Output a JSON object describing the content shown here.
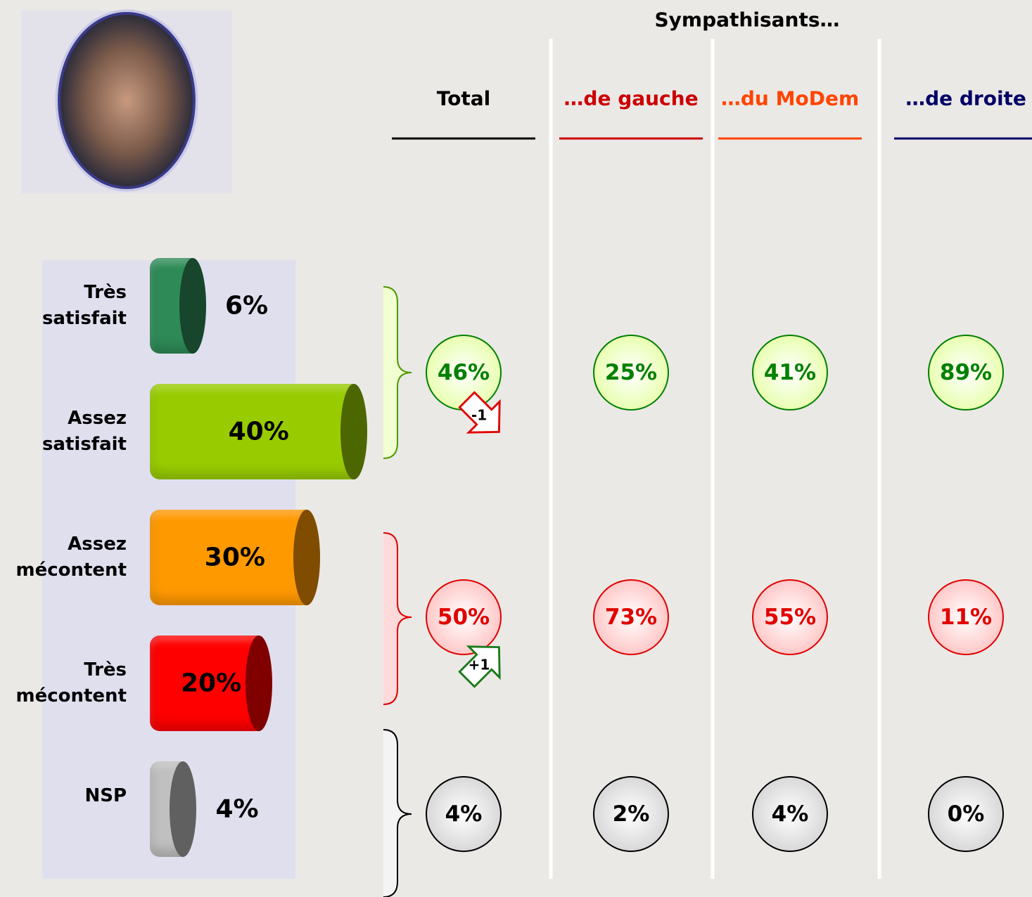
{
  "chart_data": {
    "type": "bar",
    "categories": [
      "Très satisfait",
      "Assez satisfait",
      "Assez mécontent",
      "Très mécontent",
      "NSP"
    ],
    "values": [
      6,
      40,
      30,
      20,
      4
    ],
    "value_labels": [
      "6%",
      "40%",
      "30%",
      "20%",
      "4%"
    ],
    "colors": [
      "#2e8b57",
      "#99cc00",
      "#ff9900",
      "#ff0000",
      "#c0c0c0"
    ],
    "breakdown": {
      "title": "Sympathisants…",
      "columns": [
        "Total",
        "…de gauche",
        "…du MoDem",
        "…de droite"
      ],
      "column_colors": [
        "#000000",
        "#cc0000",
        "#ff4400",
        "#000066"
      ],
      "rows": [
        {
          "color": "#008000",
          "values": [
            46,
            25,
            41,
            89
          ],
          "value_labels": [
            "46%",
            "25%",
            "41%",
            "89%"
          ],
          "change": -1
        },
        {
          "color": "#e00000",
          "values": [
            50,
            73,
            55,
            11
          ],
          "value_labels": [
            "50%",
            "73%",
            "55%",
            "11%"
          ],
          "change": 1,
          "change_label": "+1"
        },
        {
          "color": "#000000",
          "values": [
            4,
            2,
            4,
            0
          ],
          "value_labels": [
            "4%",
            "2%",
            "4%",
            "0%"
          ]
        }
      ]
    }
  }
}
